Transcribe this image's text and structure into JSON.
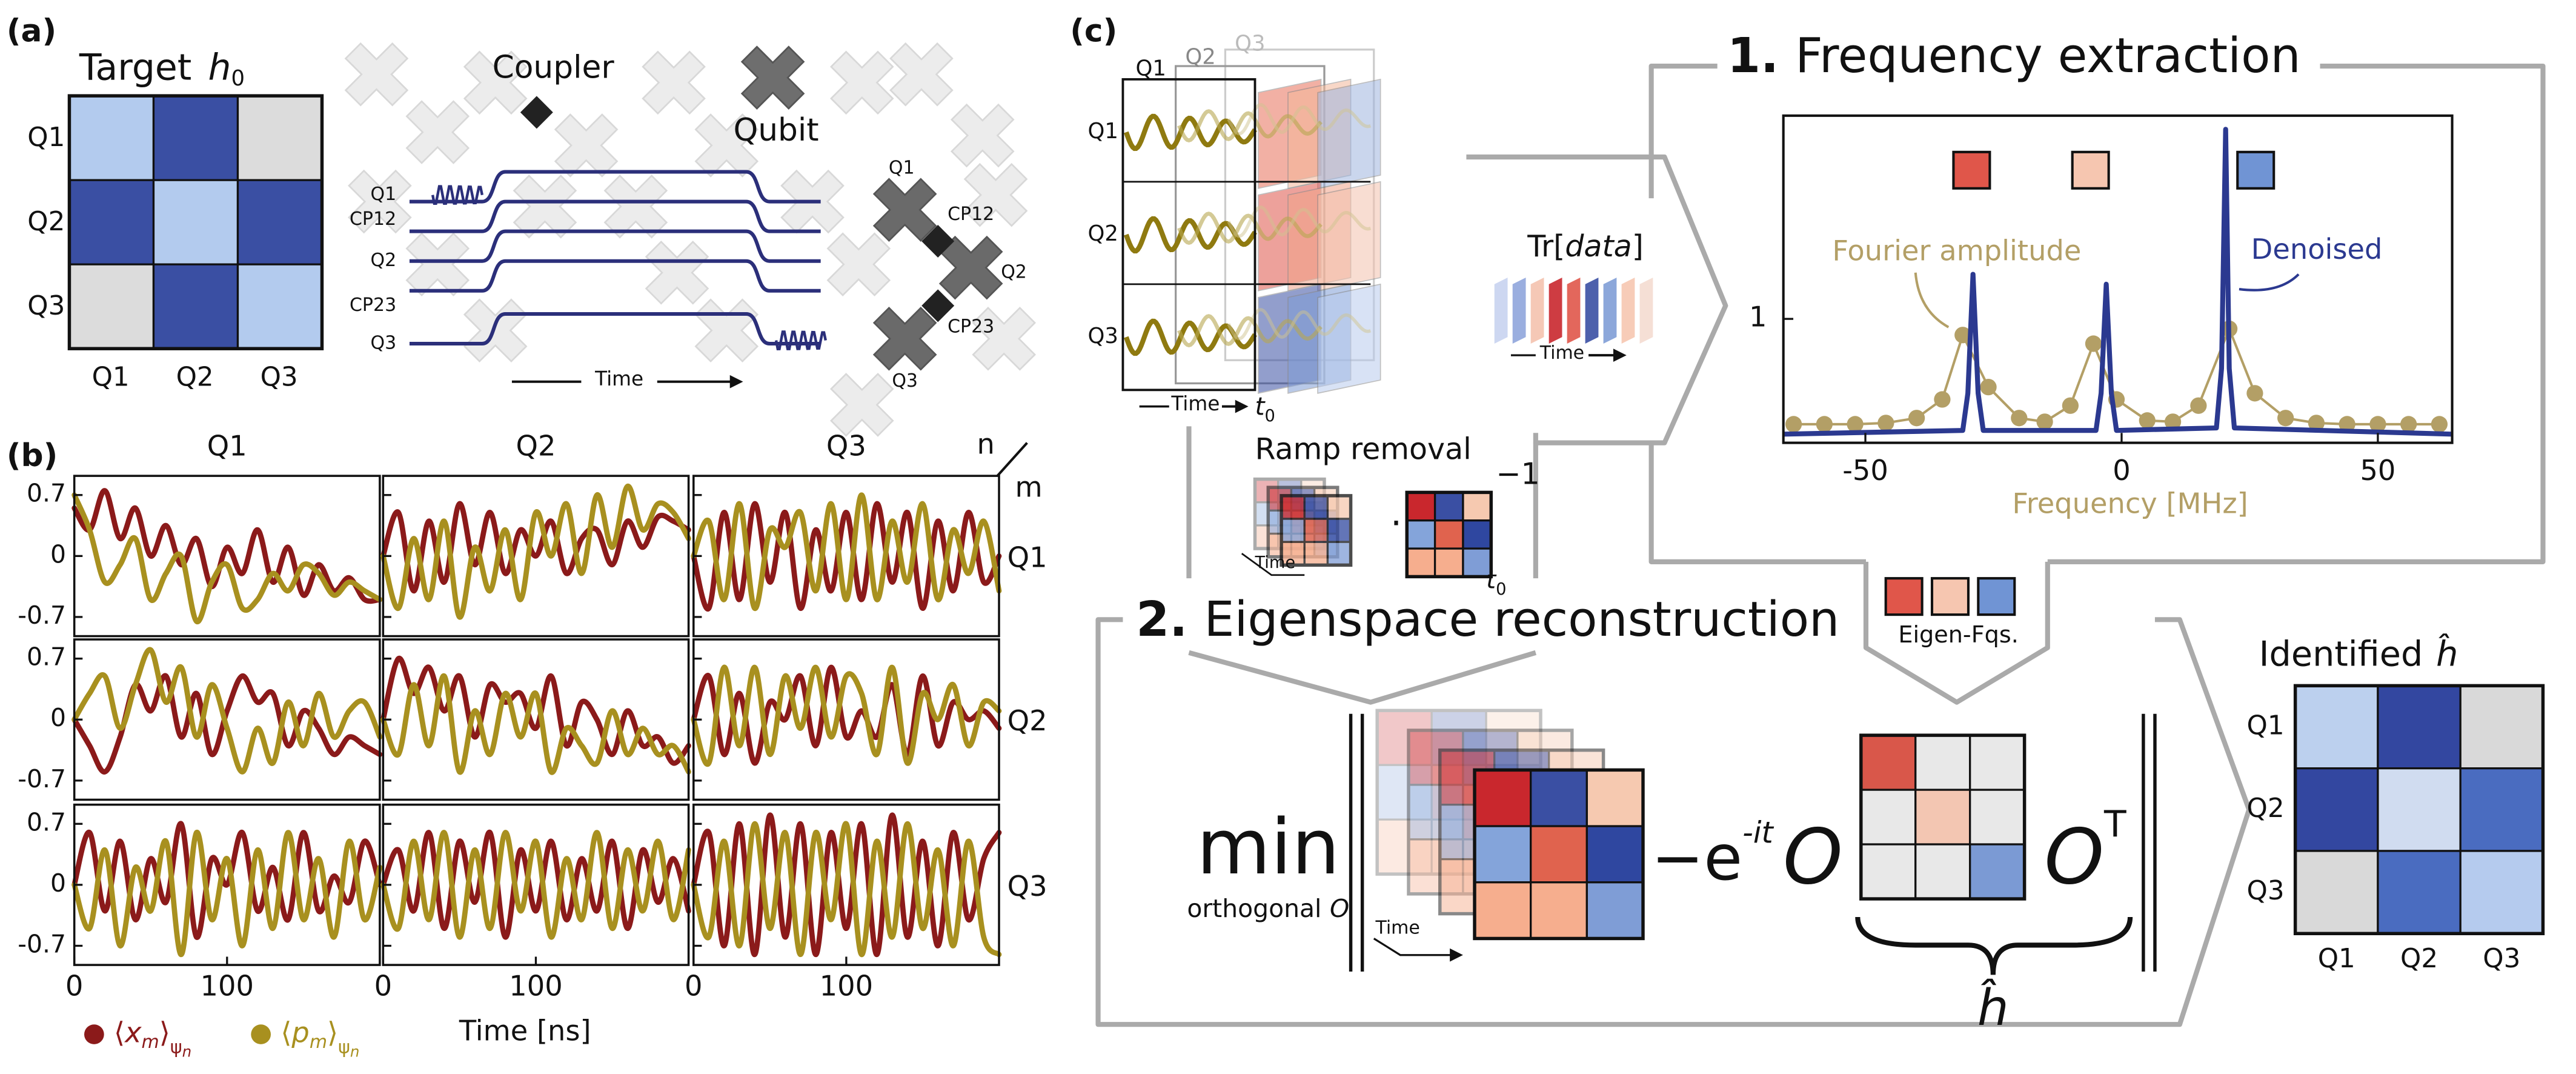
{
  "panel_a": {
    "label": "(a)",
    "title": "Target",
    "title_symbol": "h",
    "title_subscript": "0",
    "rows": [
      "Q1",
      "Q2",
      "Q3"
    ],
    "columns": [
      "Q1",
      "Q2",
      "Q3"
    ],
    "matrix_colors": [
      [
        "#b3cbee",
        "#3a4fa3",
        "#dcdcdc"
      ],
      [
        "#3a4fa3",
        "#b3cbee",
        "#3a4fa3"
      ],
      [
        "#dcdcdc",
        "#3a4fa3",
        "#b3cbee"
      ]
    ],
    "coupler": "Coupler",
    "qubit": "Qubit",
    "pulse_channels": [
      "Q1",
      "CP12",
      "Q2",
      "CP23",
      "Q3"
    ],
    "time": "Time",
    "chip_labels": [
      "Q1",
      "CP12",
      "Q2",
      "CP23",
      "Q3"
    ]
  },
  "panel_b": {
    "label": "(b)",
    "column_labels": [
      "Q1",
      "Q2",
      "Q3"
    ],
    "row_labels": [
      "Q1",
      "Q2",
      "Q3"
    ],
    "n": "n",
    "m": "m",
    "x": [
      0,
      10,
      20,
      30,
      40,
      50,
      60,
      70,
      80,
      90,
      100,
      110,
      120,
      130,
      140,
      150,
      160,
      170,
      180,
      190,
      200
    ],
    "xlim": [
      0,
      200
    ],
    "xticks": [
      0,
      100
    ],
    "ylim": [
      -0.92,
      0.92
    ],
    "yticks": [
      0.7,
      0,
      -0.7
    ],
    "xlabel": "Time [ns]",
    "legend": [
      {
        "bra": "⟨",
        "symbol": "x",
        "index": "m",
        "ket": "⟩",
        "state": "ψ",
        "state_index": "n",
        "color": "#8b1a1a"
      },
      {
        "bra": "⟨",
        "symbol": "p",
        "index": "m",
        "ket": "⟩",
        "state": "ψ",
        "state_index": "n",
        "color": "#a8901f"
      }
    ],
    "plots": [
      {
        "x_values": [
          0.55,
          0.3,
          0.75,
          0.2,
          0.55,
          0,
          0.35,
          -0.1,
          0.2,
          -0.35,
          0.1,
          -0.2,
          0.3,
          -0.3,
          0.1,
          -0.45,
          -0.1,
          -0.4,
          -0.25,
          -0.5,
          -0.5
        ],
        "p_values": [
          0.7,
          0.3,
          -0.3,
          -0.1,
          0.2,
          -0.5,
          -0.2,
          0,
          -0.75,
          -0.3,
          -0.1,
          -0.6,
          -0.5,
          -0.2,
          -0.4,
          -0.1,
          -0.2,
          -0.45,
          -0.3,
          -0.4,
          -0.5
        ]
      },
      {
        "x_values": [
          0,
          0.5,
          -0.4,
          0.4,
          -0.3,
          0.6,
          -0.1,
          0.5,
          -0.2,
          0.3,
          0,
          0.4,
          -0.2,
          0.2,
          0.3,
          -0.1,
          0.4,
          0.1,
          0.45,
          0.4,
          0.3
        ],
        "p_values": [
          0,
          -0.6,
          0.2,
          -0.5,
          0.4,
          -0.7,
          0.1,
          -0.4,
          0.3,
          -0.5,
          0.5,
          0,
          0.6,
          -0.2,
          0.7,
          0.1,
          0.8,
          0.3,
          0.6,
          0.5,
          0.2
        ]
      },
      {
        "x_values": [
          0,
          -0.6,
          0.5,
          -0.5,
          0.6,
          -0.3,
          0.5,
          -0.6,
          0.3,
          -0.4,
          0.5,
          -0.5,
          0.6,
          -0.3,
          0.5,
          -0.6,
          0.4,
          -0.4,
          0.5,
          -0.3,
          0
        ],
        "p_values": [
          0,
          0.4,
          -0.5,
          0.6,
          -0.6,
          0.3,
          0.1,
          0.5,
          -0.4,
          0.6,
          -0.5,
          0.7,
          -0.5,
          0.4,
          -0.3,
          0.6,
          -0.5,
          0.3,
          -0.2,
          0.4,
          -0.4
        ]
      },
      {
        "x_values": [
          0,
          -0.3,
          -0.6,
          -0.2,
          0.4,
          0.1,
          0.5,
          -0.2,
          0.3,
          -0.4,
          0.1,
          0.5,
          0.2,
          0.3,
          -0.3,
          0.1,
          -0.1,
          -0.4,
          -0.2,
          -0.3,
          -0.4
        ],
        "p_values": [
          0,
          0.3,
          0.5,
          -0.1,
          0.4,
          0.8,
          0.2,
          0.6,
          -0.2,
          0.4,
          -0.1,
          -0.6,
          -0.1,
          -0.5,
          0.2,
          -0.3,
          0.3,
          -0.2,
          0.1,
          0.2,
          -0.2
        ]
      },
      {
        "x_values": [
          0,
          0.7,
          0.3,
          0.6,
          0.1,
          0.5,
          -0.2,
          0.4,
          0.2,
          0.3,
          -0.1,
          0.5,
          -0.3,
          0.2,
          0,
          -0.4,
          0.1,
          -0.3,
          -0.2,
          -0.5,
          -0.3
        ],
        "p_values": [
          0,
          -0.4,
          0.4,
          -0.3,
          0.5,
          -0.6,
          0.1,
          -0.4,
          0.3,
          -0.2,
          0.3,
          -0.6,
          -0.1,
          -0.3,
          -0.5,
          0.1,
          -0.4,
          -0.1,
          -0.4,
          -0.3,
          -0.6
        ]
      },
      {
        "x_values": [
          0,
          0.5,
          -0.4,
          0.3,
          -0.5,
          0.2,
          0,
          0.5,
          -0.3,
          0.6,
          -0.2,
          0.1,
          -0.2,
          0.4,
          -0.4,
          0.5,
          -0.3,
          0.2,
          0,
          0.1,
          -0.1
        ],
        "p_values": [
          0,
          -0.5,
          0.6,
          -0.3,
          0.6,
          -0.4,
          0.5,
          -0.1,
          0.6,
          -0.2,
          0.5,
          0.3,
          -0.4,
          0.6,
          -0.5,
          0.3,
          0,
          0.4,
          -0.3,
          0.2,
          0.1
        ]
      },
      {
        "x_values": [
          0,
          0.6,
          -0.3,
          0.5,
          -0.4,
          0.3,
          -0.2,
          0.7,
          -0.6,
          0.3,
          0,
          0.6,
          -0.3,
          0.2,
          -0.4,
          0.6,
          -0.3,
          0.1,
          -0.2,
          0.5,
          0
        ],
        "p_values": [
          0,
          -0.5,
          0.4,
          -0.7,
          0.2,
          -0.3,
          0.5,
          -0.8,
          0.6,
          -0.4,
          0.3,
          -0.7,
          0.4,
          -0.5,
          0.6,
          -0.4,
          0.3,
          -0.6,
          0.5,
          -0.4,
          0.2
        ]
      },
      {
        "x_values": [
          0,
          0.4,
          -0.3,
          0.6,
          -0.5,
          0.5,
          -0.2,
          0.6,
          -0.6,
          0.4,
          -0.3,
          0.5,
          -0.4,
          0.3,
          -0.3,
          0.5,
          -0.5,
          0.4,
          -0.2,
          0.3,
          -0.3
        ],
        "p_values": [
          0,
          -0.5,
          0.5,
          -0.4,
          0.6,
          -0.6,
          0.4,
          -0.5,
          0.6,
          -0.3,
          0.5,
          -0.6,
          0.3,
          -0.4,
          0.6,
          -0.5,
          0.4,
          -0.3,
          0.5,
          -0.4,
          0.4
        ]
      },
      {
        "x_values": [
          0,
          0.6,
          -0.7,
          0.7,
          -0.8,
          0.8,
          -0.6,
          0.7,
          -0.8,
          0.6,
          -0.5,
          0.7,
          -0.8,
          0.8,
          -0.6,
          0.5,
          -0.7,
          0.6,
          -0.4,
          0.3,
          0.6
        ],
        "p_values": [
          0,
          -0.6,
          0.5,
          -0.7,
          0.7,
          -0.5,
          0.6,
          -0.8,
          0.6,
          -0.4,
          0.7,
          -0.8,
          0.5,
          -0.6,
          0.7,
          -0.5,
          0.4,
          -0.7,
          0.5,
          -0.6,
          -0.8
        ]
      }
    ]
  },
  "panel_c": {
    "label": "(c)",
    "stack_labels": [
      "Q1",
      "Q2",
      "Q3"
    ],
    "rows": [
      "Q1",
      "Q2",
      "Q3"
    ],
    "time": "Time",
    "t0": {
      "symbol": "t",
      "sub": "0"
    },
    "trace": {
      "prefix": "Tr[",
      "arg": "data",
      "suffix": "]"
    },
    "trace_time": "Time",
    "ramp": {
      "title": "Ramp removal",
      "time": "Time",
      "inverse": "−1",
      "t0": {
        "symbol": "t",
        "sub": "0"
      }
    }
  },
  "step1": {
    "number": "1.",
    "title": "Frequency extraction",
    "peak_colors": [
      "#e0564a",
      "#f6c6b0",
      "#7094d4"
    ],
    "xlim": [
      -66,
      64.5
    ],
    "ylim": [
      0,
      2.64
    ],
    "xticks": [
      -50,
      0,
      50
    ],
    "yticks": [
      1
    ],
    "xlabel": "Frequency [MHz]",
    "fourier": {
      "name": "Fourier amplitude",
      "color": "#b39f66",
      "x": [
        -64,
        -58,
        -52,
        -46,
        -40,
        -35,
        -31,
        -26,
        -20,
        -15,
        -10,
        -5.5,
        -1,
        5,
        10,
        15,
        21,
        26,
        32,
        38,
        44,
        50,
        56,
        62
      ],
      "values": [
        0.15,
        0.15,
        0.15,
        0.16,
        0.2,
        0.35,
        0.87,
        0.45,
        0.2,
        0.17,
        0.3,
        0.8,
        0.35,
        0.18,
        0.17,
        0.3,
        0.92,
        0.4,
        0.2,
        0.16,
        0.15,
        0.15,
        0.15,
        0.15
      ]
    },
    "denoised": {
      "name": "Denoised",
      "color": "#2b3990",
      "x": [
        -66,
        -31,
        -30,
        -29,
        -28,
        -27,
        -5,
        -4,
        -3,
        -2,
        -1,
        18.5,
        19.5,
        20.3,
        21,
        22,
        64.5
      ],
      "values": [
        0.07,
        0.1,
        0.4,
        1.36,
        0.4,
        0.1,
        0.1,
        0.4,
        1.28,
        0.4,
        0.1,
        0.12,
        0.6,
        2.53,
        0.6,
        0.12,
        0.07
      ]
    }
  },
  "eigen_fqs": {
    "label": "Eigen-Fqs.",
    "colors": [
      "#e0564a",
      "#f6c6b0",
      "#7094d4"
    ]
  },
  "step2": {
    "number": "2.",
    "title": "Eigenspace reconstruction",
    "min": "min",
    "subject": "orthogonal",
    "subject_symbol": "O",
    "minus_e": "−e",
    "exponent": "-it",
    "left_O": "O",
    "right_O": "O",
    "transpose": "T",
    "hhat": "ĥ",
    "time": "Time",
    "data_colors": [
      [
        "#c9272d",
        "#3a4fa3",
        "#f6c9b0"
      ],
      [
        "#84a4da",
        "#e0634e",
        "#2f47a0"
      ],
      [
        "#f6ae8e",
        "#f6ae8e",
        "#7f9dd6"
      ]
    ],
    "eigen_colors": [
      [
        "#d9574a",
        "#e8e8e8",
        "#e8e8e8"
      ],
      [
        "#e8e8e8",
        "#f3c6b2",
        "#e8e8e8"
      ],
      [
        "#e8e8e8",
        "#e8e8e8",
        "#7b9ad4"
      ]
    ]
  },
  "identified": {
    "title": "Identified",
    "symbol": "ĥ",
    "rows": [
      "Q1",
      "Q2",
      "Q3"
    ],
    "columns": [
      "Q1",
      "Q2",
      "Q3"
    ],
    "matrix_colors": [
      [
        "#bcd0ee",
        "#3347a0",
        "#d9d9d9"
      ],
      [
        "#3347a0",
        "#d0dcf0",
        "#4a6cc0"
      ],
      [
        "#d9d9d9",
        "#4a6cc0",
        "#b5cbee"
      ]
    ]
  }
}
